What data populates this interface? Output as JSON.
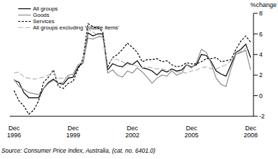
{
  "chart_data": {
    "type": "line",
    "y_label": "%change",
    "source": "Source: Consumer Price Index, Australia, (cat. no. 6401.0)",
    "categories": [
      "Dec 1996",
      null,
      null,
      null,
      null,
      null,
      null,
      null,
      null,
      null,
      null,
      null,
      "Dec 1999",
      null,
      null,
      null,
      null,
      null,
      null,
      null,
      null,
      null,
      null,
      null,
      "Dec 2002",
      null,
      null,
      null,
      null,
      null,
      null,
      null,
      null,
      null,
      null,
      null,
      "Dec 2005",
      null,
      null,
      null,
      null,
      null,
      null,
      null,
      null,
      null,
      null,
      null,
      "Dec 2008"
    ],
    "series": [
      {
        "name": "All groups",
        "color": "#000000",
        "line_style": "solid",
        "values": [
          1.5,
          1.3,
          0.3,
          -0.2,
          -0.2,
          -0.2,
          0.7,
          1.3,
          1.6,
          1.2,
          1.1,
          1.7,
          1.8,
          2.8,
          3.2,
          6.1,
          5.8,
          6.0,
          6.0,
          2.5,
          3.1,
          2.9,
          2.8,
          3.2,
          3.0,
          3.4,
          2.7,
          2.6,
          2.4,
          2.0,
          2.5,
          2.3,
          2.6,
          2.4,
          2.5,
          3.0,
          2.8,
          3.0,
          4.0,
          3.9,
          3.3,
          2.4,
          2.1,
          1.9,
          3.0,
          4.2,
          4.5,
          5.0,
          3.7
        ]
      },
      {
        "name": "Goods",
        "color": "#8c8c8c",
        "line_style": "solid",
        "values": [
          1.6,
          0.9,
          0.6,
          0.3,
          0.2,
          0.1,
          0.7,
          1.2,
          1.5,
          1.2,
          1.3,
          2.0,
          2.1,
          3.0,
          3.2,
          5.6,
          5.5,
          5.7,
          5.8,
          2.2,
          2.5,
          2.0,
          1.8,
          2.4,
          2.2,
          2.7,
          2.3,
          1.8,
          1.2,
          1.7,
          2.0,
          1.9,
          2.4,
          2.0,
          2.2,
          3.0,
          2.7,
          3.2,
          4.5,
          4.2,
          3.1,
          1.7,
          1.1,
          0.9,
          2.6,
          4.0,
          4.2,
          4.4,
          2.5
        ]
      },
      {
        "name": "Services",
        "color": "#000000",
        "line_style": "dashed",
        "values": [
          0.5,
          -0.5,
          -1.0,
          -1.8,
          -1.4,
          -0.5,
          1.3,
          1.8,
          2.5,
          0.9,
          0.7,
          1.2,
          1.4,
          2.6,
          3.6,
          7.0,
          6.7,
          6.6,
          6.2,
          2.8,
          3.7,
          4.0,
          4.5,
          5.1,
          4.7,
          4.2,
          3.3,
          3.5,
          3.5,
          3.6,
          3.3,
          3.4,
          3.0,
          2.8,
          2.9,
          3.2,
          3.1,
          3.1,
          3.3,
          3.6,
          3.6,
          3.7,
          3.3,
          3.4,
          3.5,
          4.5,
          5.3,
          5.8,
          5.2
        ]
      },
      {
        "name": "All groups excluding 'volatile items'",
        "color": "#b4b4b4",
        "line_style": "long_dashed",
        "values": [
          2.2,
          2.3,
          1.8,
          1.7,
          1.6,
          1.7,
          1.8,
          2.0,
          2.1,
          1.7,
          1.7,
          1.8,
          2.0,
          3.0,
          3.3,
          6.4,
          6.2,
          5.9,
          5.6,
          3.0,
          3.6,
          3.5,
          3.3,
          3.0,
          3.0,
          2.9,
          2.7,
          2.8,
          2.7,
          2.6,
          2.6,
          2.5,
          2.4,
          2.3,
          2.3,
          2.2,
          2.4,
          2.5,
          2.7,
          2.8,
          2.6,
          2.6,
          2.8,
          3.0,
          3.4,
          4.1,
          4.3,
          4.6,
          4.6
        ]
      }
    ],
    "ylim": [
      -2,
      8
    ],
    "yticks": [
      -2,
      0,
      2,
      4,
      6,
      8
    ],
    "grid": false,
    "legend": "top-left"
  }
}
